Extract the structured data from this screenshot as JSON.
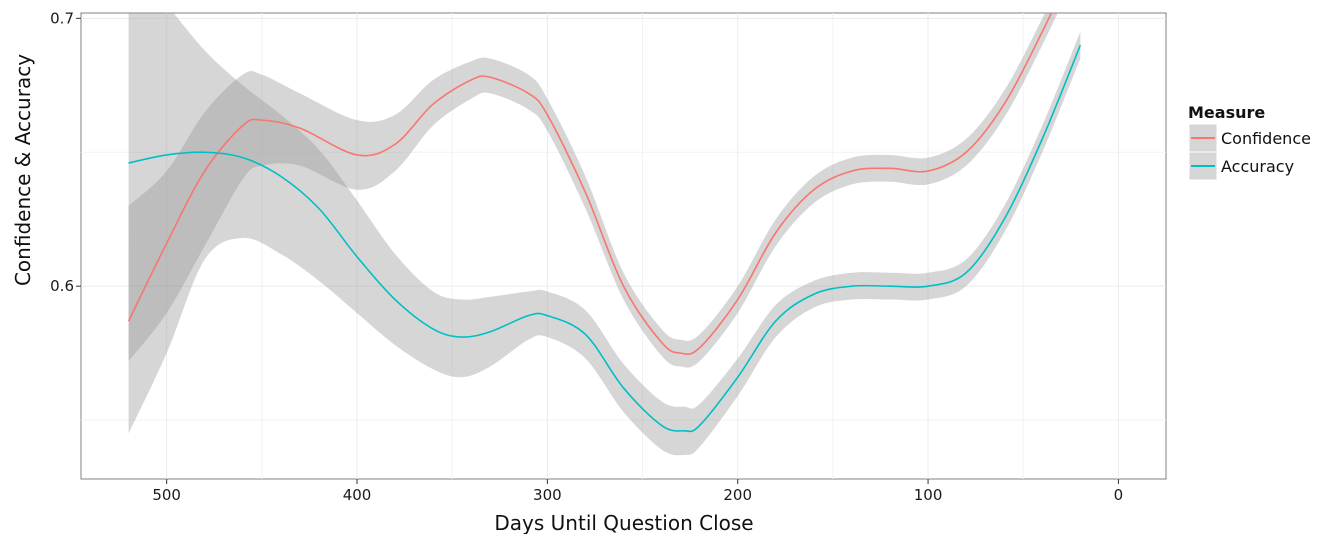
{
  "chart_data": {
    "type": "line",
    "xlabel": "Days Until Question Close",
    "ylabel": "Confidence & Accuracy",
    "x_reversed": true,
    "xlim": [
      545,
      -25
    ],
    "ylim": [
      0.528,
      0.702
    ],
    "x_ticks": [
      500,
      400,
      300,
      200,
      100,
      0
    ],
    "y_ticks": [
      0.6,
      0.7
    ],
    "grid": true,
    "legend": {
      "title": "Measure",
      "position": "right"
    },
    "series": [
      {
        "name": "Confidence",
        "color": "#F8766D",
        "x": [
          520,
          500,
          480,
          460,
          450,
          430,
          400,
          380,
          360,
          340,
          330,
          310,
          300,
          280,
          260,
          240,
          230,
          220,
          200,
          180,
          160,
          140,
          120,
          100,
          80,
          60,
          40,
          20
        ],
        "y": [
          0.587,
          0.616,
          0.643,
          0.66,
          0.662,
          0.659,
          0.649,
          0.653,
          0.668,
          0.677,
          0.678,
          0.672,
          0.664,
          0.635,
          0.6,
          0.579,
          0.575,
          0.577,
          0.595,
          0.62,
          0.636,
          0.643,
          0.644,
          0.643,
          0.65,
          0.668,
          0.695,
          0.725
        ],
        "band_lower": [
          0.572,
          0.59,
          0.615,
          0.64,
          0.645,
          0.645,
          0.636,
          0.643,
          0.66,
          0.67,
          0.672,
          0.666,
          0.658,
          0.629,
          0.595,
          0.574,
          0.57,
          0.572,
          0.59,
          0.615,
          0.631,
          0.638,
          0.639,
          0.638,
          0.645,
          0.663,
          0.69,
          0.72
        ],
        "band_upper": [
          0.63,
          0.643,
          0.665,
          0.679,
          0.679,
          0.672,
          0.662,
          0.664,
          0.677,
          0.684,
          0.685,
          0.679,
          0.67,
          0.641,
          0.605,
          0.584,
          0.58,
          0.582,
          0.6,
          0.625,
          0.641,
          0.648,
          0.649,
          0.648,
          0.655,
          0.673,
          0.7,
          0.73
        ]
      },
      {
        "name": "Accuracy",
        "color": "#00BFC4",
        "x": [
          520,
          500,
          480,
          460,
          440,
          420,
          400,
          380,
          360,
          345,
          330,
          310,
          300,
          280,
          260,
          240,
          228,
          220,
          200,
          180,
          160,
          140,
          120,
          100,
          80,
          60,
          40,
          20
        ],
        "y": [
          0.646,
          0.649,
          0.65,
          0.648,
          0.641,
          0.629,
          0.611,
          0.595,
          0.584,
          0.581,
          0.583,
          0.589,
          0.589,
          0.582,
          0.562,
          0.548,
          0.546,
          0.548,
          0.566,
          0.587,
          0.597,
          0.6,
          0.6,
          0.6,
          0.605,
          0.625,
          0.655,
          0.69
        ],
        "band_lower": [
          0.545,
          0.575,
          0.61,
          0.618,
          0.612,
          0.602,
          0.59,
          0.578,
          0.569,
          0.566,
          0.57,
          0.58,
          0.581,
          0.573,
          0.553,
          0.539,
          0.537,
          0.54,
          0.559,
          0.581,
          0.592,
          0.595,
          0.595,
          0.595,
          0.6,
          0.62,
          0.65,
          0.685
        ],
        "band_upper": [
          0.72,
          0.705,
          0.688,
          0.675,
          0.664,
          0.651,
          0.632,
          0.612,
          0.598,
          0.595,
          0.596,
          0.598,
          0.598,
          0.591,
          0.571,
          0.557,
          0.555,
          0.556,
          0.573,
          0.593,
          0.602,
          0.605,
          0.605,
          0.605,
          0.61,
          0.63,
          0.66,
          0.695
        ]
      }
    ]
  }
}
